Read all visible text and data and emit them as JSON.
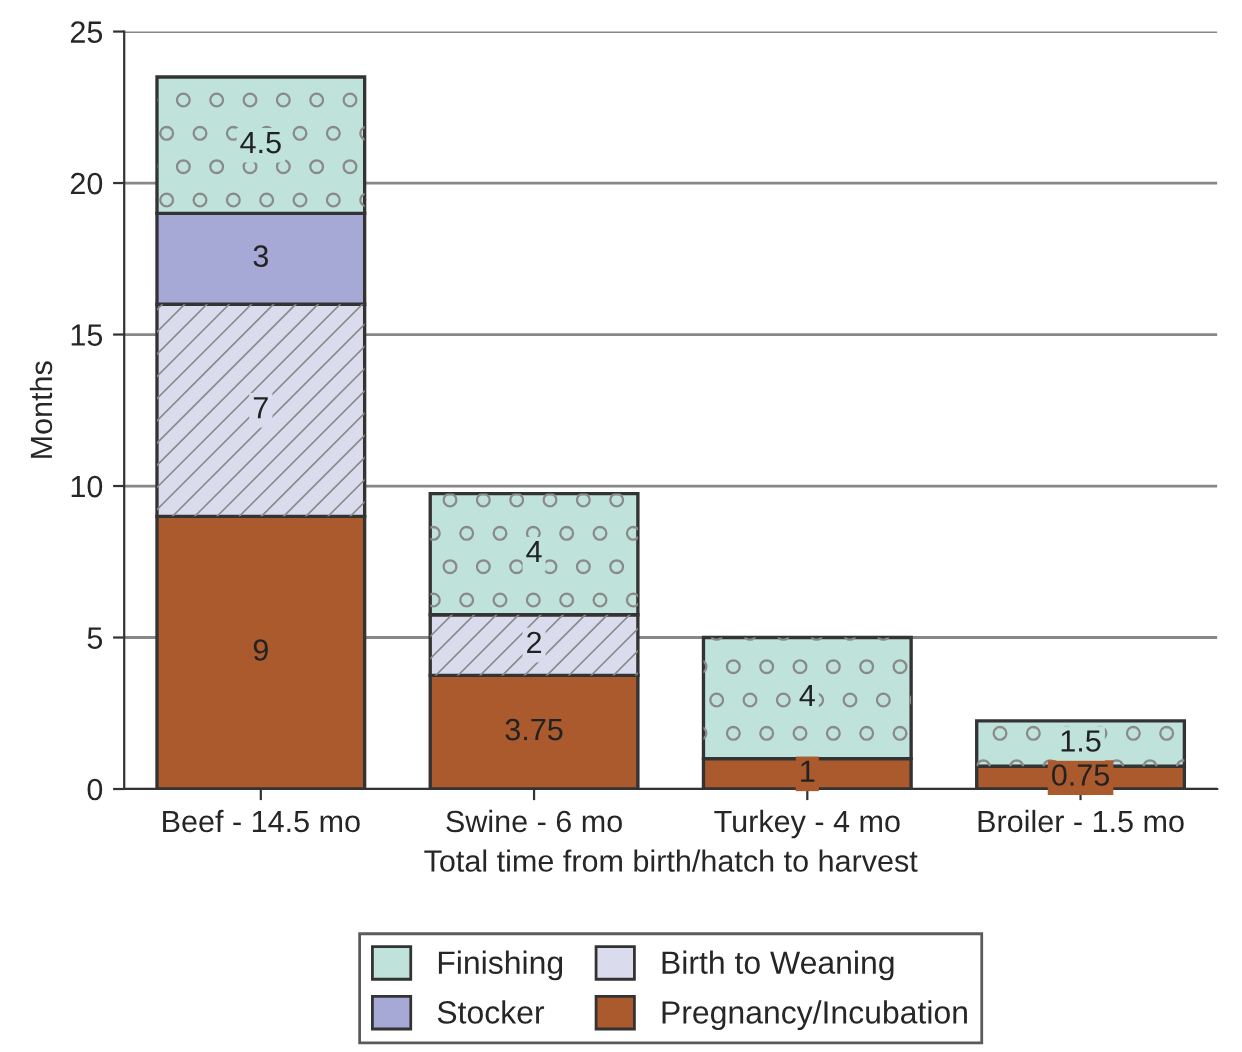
{
  "chart_data": {
    "type": "bar",
    "stacked": true,
    "xlabel": "Total time from birth/hatch to harvest",
    "ylabel": "Months",
    "categories": [
      "Beef - 14.5 mo",
      "Swine - 6 mo",
      "Turkey - 4 mo",
      "Broiler - 1.5 mo"
    ],
    "series": [
      {
        "name": "Pregnancy/Incubation",
        "color": "#ab5a2e",
        "values": [
          9,
          3.75,
          1,
          0.75
        ]
      },
      {
        "name": "Birth to Weaning",
        "color": "#dadcee",
        "values": [
          7,
          2,
          null,
          null
        ]
      },
      {
        "name": "Stocker",
        "color": "#a6a8d6",
        "values": [
          3,
          null,
          null,
          null
        ]
      },
      {
        "name": "Finishing",
        "color": "#bfe3db",
        "values": [
          4.5,
          4,
          4,
          1.5
        ]
      }
    ],
    "ylim": [
      0,
      25
    ],
    "yticks": [
      0,
      5,
      10,
      15,
      20,
      25
    ],
    "grid": "y",
    "legend": "bottom",
    "data_labels": true
  }
}
